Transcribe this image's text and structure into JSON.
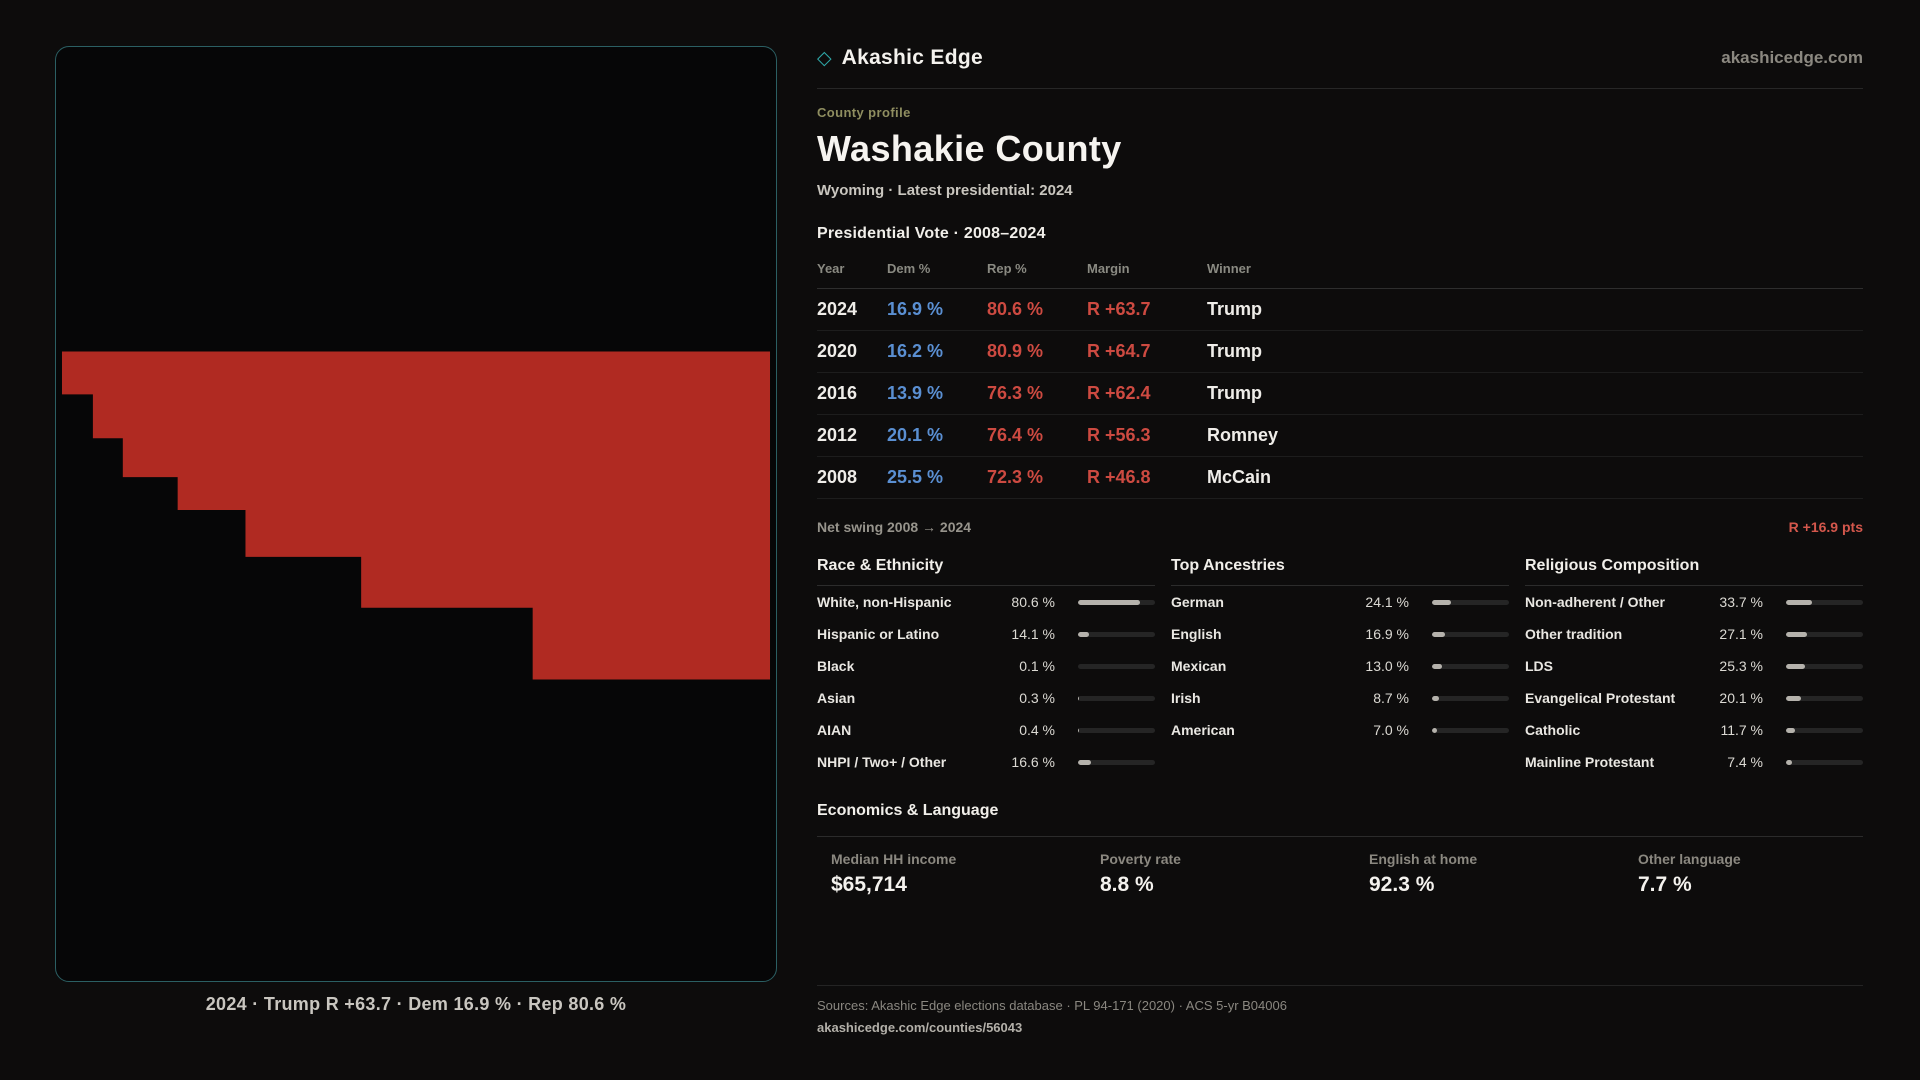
{
  "brand": {
    "name": "Akashic Edge",
    "domain": "akashicedge.com",
    "glyph": "◇"
  },
  "map": {
    "caption": "2024 · Trump R +63.7 · Dem 16.9 % · Rep 80.6 %"
  },
  "profile": {
    "kicker": "County profile",
    "title": "Washakie County",
    "subtitle": "Wyoming · Latest presidential: 2024"
  },
  "vote_table": {
    "title": "Presidential Vote · 2008–2024",
    "columns": [
      "Year",
      "Dem %",
      "Rep %",
      "Margin",
      "Winner"
    ],
    "rows": [
      {
        "year": "2024",
        "dem": "16.9 %",
        "rep": "80.6 %",
        "margin": "R +63.7",
        "winner": "Trump"
      },
      {
        "year": "2020",
        "dem": "16.2 %",
        "rep": "80.9 %",
        "margin": "R +64.7",
        "winner": "Trump"
      },
      {
        "year": "2016",
        "dem": "13.9 %",
        "rep": "76.3 %",
        "margin": "R +62.4",
        "winner": "Trump"
      },
      {
        "year": "2012",
        "dem": "20.1 %",
        "rep": "76.4 %",
        "margin": "R +56.3",
        "winner": "Romney"
      },
      {
        "year": "2008",
        "dem": "25.5 %",
        "rep": "72.3 %",
        "margin": "R +46.8",
        "winner": "McCain"
      }
    ],
    "net_swing_label": "Net swing 2008 → 2024",
    "net_swing_value": "R +16.9 pts"
  },
  "demographics": [
    {
      "title": "Race & Ethnicity",
      "rows": [
        {
          "label": "White, non-Hispanic",
          "value": "80.6 %",
          "pct": 80.6
        },
        {
          "label": "Hispanic or Latino",
          "value": "14.1 %",
          "pct": 14.1
        },
        {
          "label": "Black",
          "value": "0.1 %",
          "pct": 0.1
        },
        {
          "label": "Asian",
          "value": "0.3 %",
          "pct": 0.3
        },
        {
          "label": "AIAN",
          "value": "0.4 %",
          "pct": 0.4
        },
        {
          "label": "NHPI / Two+ / Other",
          "value": "16.6 %",
          "pct": 16.6
        }
      ]
    },
    {
      "title": "Top Ancestries",
      "rows": [
        {
          "label": "German",
          "value": "24.1 %",
          "pct": 24.1
        },
        {
          "label": "English",
          "value": "16.9 %",
          "pct": 16.9
        },
        {
          "label": "Mexican",
          "value": "13.0 %",
          "pct": 13.0
        },
        {
          "label": "Irish",
          "value": "8.7 %",
          "pct": 8.7
        },
        {
          "label": "American",
          "value": "7.0 %",
          "pct": 7.0
        }
      ]
    },
    {
      "title": "Religious Composition",
      "rows": [
        {
          "label": "Non-adherent / Other",
          "value": "33.7 %",
          "pct": 33.7
        },
        {
          "label": "Other tradition",
          "value": "27.1 %",
          "pct": 27.1
        },
        {
          "label": "LDS",
          "value": "25.3 %",
          "pct": 25.3
        },
        {
          "label": "Evangelical Protestant",
          "value": "20.1 %",
          "pct": 20.1
        },
        {
          "label": "Catholic",
          "value": "11.7 %",
          "pct": 11.7
        },
        {
          "label": "Mainline Protestant",
          "value": "7.4 %",
          "pct": 7.4
        }
      ]
    }
  ],
  "economics": {
    "title": "Economics & Language",
    "stats": [
      {
        "label": "Median HH income",
        "value": "$65,714"
      },
      {
        "label": "Poverty rate",
        "value": "8.8 %"
      },
      {
        "label": "English at home",
        "value": "92.3 %"
      },
      {
        "label": "Other language",
        "value": "7.7 %"
      }
    ]
  },
  "footer": {
    "sources": "Sources: Akashic Edge elections database · PL 94-171 (2020) · ACS 5-yr B04006",
    "permalink": "akashicedge.com/counties/56043"
  },
  "colors": {
    "accent": "#2fa8a8",
    "dem": "#5a8fd2",
    "rep": "#cd4a41",
    "swing": "#d4574c",
    "county_fill": "#b02a22",
    "map_border": "#2b5f63",
    "kicker": "#8f8e60"
  }
}
